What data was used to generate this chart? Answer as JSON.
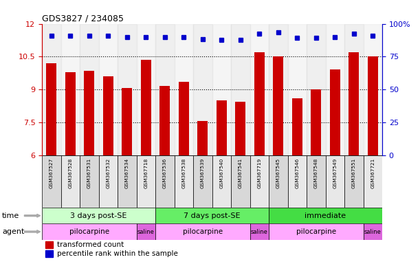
{
  "title": "GDS3827 / 234085",
  "samples": [
    "GSM367527",
    "GSM367528",
    "GSM367531",
    "GSM367532",
    "GSM367534",
    "GSM367718",
    "GSM367536",
    "GSM367538",
    "GSM367539",
    "GSM367540",
    "GSM367541",
    "GSM367719",
    "GSM367545",
    "GSM367546",
    "GSM367548",
    "GSM367549",
    "GSM367551",
    "GSM367721"
  ],
  "bar_values": [
    10.2,
    9.8,
    9.85,
    9.6,
    9.05,
    10.35,
    9.15,
    9.35,
    7.55,
    8.5,
    8.45,
    10.7,
    10.5,
    8.6,
    9.0,
    9.9,
    10.7,
    10.5
  ],
  "dot_values": [
    11.45,
    11.45,
    11.45,
    11.45,
    11.4,
    11.4,
    11.4,
    11.4,
    11.3,
    11.25,
    11.25,
    11.55,
    11.6,
    11.35,
    11.35,
    11.4,
    11.55,
    11.45
  ],
  "ylim": [
    6,
    12
  ],
  "yticks": [
    6,
    7.5,
    9,
    10.5,
    12
  ],
  "ytick_labels": [
    "6",
    "7.5",
    "9",
    "10.5",
    "12"
  ],
  "right_ytick_labels": [
    "0",
    "25",
    "50",
    "75",
    "100%"
  ],
  "bar_color": "#cc0000",
  "dot_color": "#0000cc",
  "time_groups": [
    {
      "label": "3 days post-SE",
      "start": 0,
      "end": 5,
      "color": "#ccffcc"
    },
    {
      "label": "7 days post-SE",
      "start": 6,
      "end": 11,
      "color": "#66ee66"
    },
    {
      "label": "immediate",
      "start": 12,
      "end": 17,
      "color": "#44dd44"
    }
  ],
  "agent_groups": [
    {
      "label": "pilocarpine",
      "start": 0,
      "end": 4,
      "color": "#ffaaff"
    },
    {
      "label": "saline",
      "start": 5,
      "end": 5,
      "color": "#dd66dd"
    },
    {
      "label": "pilocarpine",
      "start": 6,
      "end": 10,
      "color": "#ffaaff"
    },
    {
      "label": "saline",
      "start": 11,
      "end": 11,
      "color": "#dd66dd"
    },
    {
      "label": "pilocarpine",
      "start": 12,
      "end": 16,
      "color": "#ffaaff"
    },
    {
      "label": "saline",
      "start": 17,
      "end": 17,
      "color": "#dd66dd"
    }
  ],
  "time_label": "time",
  "agent_label": "agent",
  "legend_bar_label": "transformed count",
  "legend_dot_label": "percentile rank within the sample",
  "cell_colors": [
    "#d8d8d8",
    "#e8e8e8"
  ]
}
